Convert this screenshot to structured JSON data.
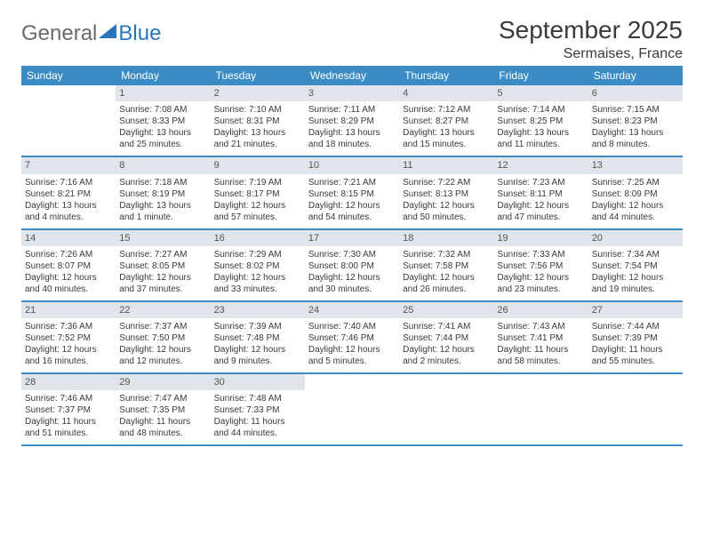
{
  "logo": {
    "word1": "General",
    "word2": "Blue"
  },
  "title": "September 2025",
  "location": "Sermaises, France",
  "colors": {
    "header_bar": "#3b8bc5",
    "daynum_bg": "#dfe5ea",
    "text": "#3a3a3a",
    "logo_gray": "#6a6a6a",
    "logo_blue": "#2976bb"
  },
  "dow": [
    "Sunday",
    "Monday",
    "Tuesday",
    "Wednesday",
    "Thursday",
    "Friday",
    "Saturday"
  ],
  "weeks": [
    [
      null,
      {
        "n": "1",
        "sr": "Sunrise: 7:08 AM",
        "ss": "Sunset: 8:33 PM",
        "d1": "Daylight: 13 hours",
        "d2": "and 25 minutes."
      },
      {
        "n": "2",
        "sr": "Sunrise: 7:10 AM",
        "ss": "Sunset: 8:31 PM",
        "d1": "Daylight: 13 hours",
        "d2": "and 21 minutes."
      },
      {
        "n": "3",
        "sr": "Sunrise: 7:11 AM",
        "ss": "Sunset: 8:29 PM",
        "d1": "Daylight: 13 hours",
        "d2": "and 18 minutes."
      },
      {
        "n": "4",
        "sr": "Sunrise: 7:12 AM",
        "ss": "Sunset: 8:27 PM",
        "d1": "Daylight: 13 hours",
        "d2": "and 15 minutes."
      },
      {
        "n": "5",
        "sr": "Sunrise: 7:14 AM",
        "ss": "Sunset: 8:25 PM",
        "d1": "Daylight: 13 hours",
        "d2": "and 11 minutes."
      },
      {
        "n": "6",
        "sr": "Sunrise: 7:15 AM",
        "ss": "Sunset: 8:23 PM",
        "d1": "Daylight: 13 hours",
        "d2": "and 8 minutes."
      }
    ],
    [
      {
        "n": "7",
        "sr": "Sunrise: 7:16 AM",
        "ss": "Sunset: 8:21 PM",
        "d1": "Daylight: 13 hours",
        "d2": "and 4 minutes."
      },
      {
        "n": "8",
        "sr": "Sunrise: 7:18 AM",
        "ss": "Sunset: 8:19 PM",
        "d1": "Daylight: 13 hours",
        "d2": "and 1 minute."
      },
      {
        "n": "9",
        "sr": "Sunrise: 7:19 AM",
        "ss": "Sunset: 8:17 PM",
        "d1": "Daylight: 12 hours",
        "d2": "and 57 minutes."
      },
      {
        "n": "10",
        "sr": "Sunrise: 7:21 AM",
        "ss": "Sunset: 8:15 PM",
        "d1": "Daylight: 12 hours",
        "d2": "and 54 minutes."
      },
      {
        "n": "11",
        "sr": "Sunrise: 7:22 AM",
        "ss": "Sunset: 8:13 PM",
        "d1": "Daylight: 12 hours",
        "d2": "and 50 minutes."
      },
      {
        "n": "12",
        "sr": "Sunrise: 7:23 AM",
        "ss": "Sunset: 8:11 PM",
        "d1": "Daylight: 12 hours",
        "d2": "and 47 minutes."
      },
      {
        "n": "13",
        "sr": "Sunrise: 7:25 AM",
        "ss": "Sunset: 8:09 PM",
        "d1": "Daylight: 12 hours",
        "d2": "and 44 minutes."
      }
    ],
    [
      {
        "n": "14",
        "sr": "Sunrise: 7:26 AM",
        "ss": "Sunset: 8:07 PM",
        "d1": "Daylight: 12 hours",
        "d2": "and 40 minutes."
      },
      {
        "n": "15",
        "sr": "Sunrise: 7:27 AM",
        "ss": "Sunset: 8:05 PM",
        "d1": "Daylight: 12 hours",
        "d2": "and 37 minutes."
      },
      {
        "n": "16",
        "sr": "Sunrise: 7:29 AM",
        "ss": "Sunset: 8:02 PM",
        "d1": "Daylight: 12 hours",
        "d2": "and 33 minutes."
      },
      {
        "n": "17",
        "sr": "Sunrise: 7:30 AM",
        "ss": "Sunset: 8:00 PM",
        "d1": "Daylight: 12 hours",
        "d2": "and 30 minutes."
      },
      {
        "n": "18",
        "sr": "Sunrise: 7:32 AM",
        "ss": "Sunset: 7:58 PM",
        "d1": "Daylight: 12 hours",
        "d2": "and 26 minutes."
      },
      {
        "n": "19",
        "sr": "Sunrise: 7:33 AM",
        "ss": "Sunset: 7:56 PM",
        "d1": "Daylight: 12 hours",
        "d2": "and 23 minutes."
      },
      {
        "n": "20",
        "sr": "Sunrise: 7:34 AM",
        "ss": "Sunset: 7:54 PM",
        "d1": "Daylight: 12 hours",
        "d2": "and 19 minutes."
      }
    ],
    [
      {
        "n": "21",
        "sr": "Sunrise: 7:36 AM",
        "ss": "Sunset: 7:52 PM",
        "d1": "Daylight: 12 hours",
        "d2": "and 16 minutes."
      },
      {
        "n": "22",
        "sr": "Sunrise: 7:37 AM",
        "ss": "Sunset: 7:50 PM",
        "d1": "Daylight: 12 hours",
        "d2": "and 12 minutes."
      },
      {
        "n": "23",
        "sr": "Sunrise: 7:39 AM",
        "ss": "Sunset: 7:48 PM",
        "d1": "Daylight: 12 hours",
        "d2": "and 9 minutes."
      },
      {
        "n": "24",
        "sr": "Sunrise: 7:40 AM",
        "ss": "Sunset: 7:46 PM",
        "d1": "Daylight: 12 hours",
        "d2": "and 5 minutes."
      },
      {
        "n": "25",
        "sr": "Sunrise: 7:41 AM",
        "ss": "Sunset: 7:44 PM",
        "d1": "Daylight: 12 hours",
        "d2": "and 2 minutes."
      },
      {
        "n": "26",
        "sr": "Sunrise: 7:43 AM",
        "ss": "Sunset: 7:41 PM",
        "d1": "Daylight: 11 hours",
        "d2": "and 58 minutes."
      },
      {
        "n": "27",
        "sr": "Sunrise: 7:44 AM",
        "ss": "Sunset: 7:39 PM",
        "d1": "Daylight: 11 hours",
        "d2": "and 55 minutes."
      }
    ],
    [
      {
        "n": "28",
        "sr": "Sunrise: 7:46 AM",
        "ss": "Sunset: 7:37 PM",
        "d1": "Daylight: 11 hours",
        "d2": "and 51 minutes."
      },
      {
        "n": "29",
        "sr": "Sunrise: 7:47 AM",
        "ss": "Sunset: 7:35 PM",
        "d1": "Daylight: 11 hours",
        "d2": "and 48 minutes."
      },
      {
        "n": "30",
        "sr": "Sunrise: 7:48 AM",
        "ss": "Sunset: 7:33 PM",
        "d1": "Daylight: 11 hours",
        "d2": "and 44 minutes."
      },
      null,
      null,
      null,
      null
    ]
  ]
}
